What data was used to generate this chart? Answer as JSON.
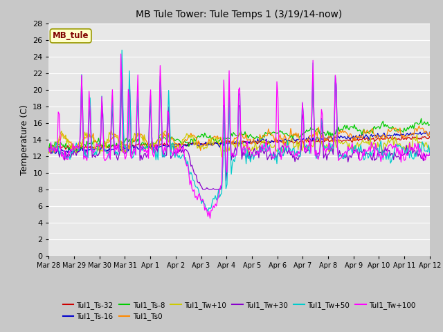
{
  "title": "MB Tule Tower: Tule Temps 1 (3/19/14-now)",
  "ylabel": "Temperature (C)",
  "ylim": [
    0,
    28
  ],
  "yticks": [
    0,
    2,
    4,
    6,
    8,
    10,
    12,
    14,
    16,
    18,
    20,
    22,
    24,
    26,
    28
  ],
  "xtick_labels": [
    "Mar 28",
    "Mar 29",
    "Mar 30",
    "Mar 31",
    "Apr 1",
    "Apr 2",
    "Apr 3",
    "Apr 4",
    "Apr 5",
    "Apr 6",
    "Apr 7",
    "Apr 8",
    "Apr 9",
    "Apr 10",
    "Apr 11",
    "Apr 12"
  ],
  "fig_bg": "#c8c8c8",
  "axes_bg": "#e8e8e8",
  "grid_color": "#ffffff",
  "series_colors": {
    "Tul1_Ts-32": "#cc0000",
    "Tul1_Ts-16": "#0000cc",
    "Tul1_Ts-8": "#00cc00",
    "Tul1_Ts0": "#ff8800",
    "Tul1_Tw+10": "#cccc00",
    "Tul1_Tw+30": "#8800cc",
    "Tul1_Tw+50": "#00cccc",
    "Tul1_Tw+100": "#ff00ff"
  },
  "legend_label": "MB_tule",
  "legend_text_color": "#800000",
  "legend_box_color": "#ffffcc",
  "legend_box_edge": "#999900",
  "num_days": 15,
  "pts_per_day": 24
}
